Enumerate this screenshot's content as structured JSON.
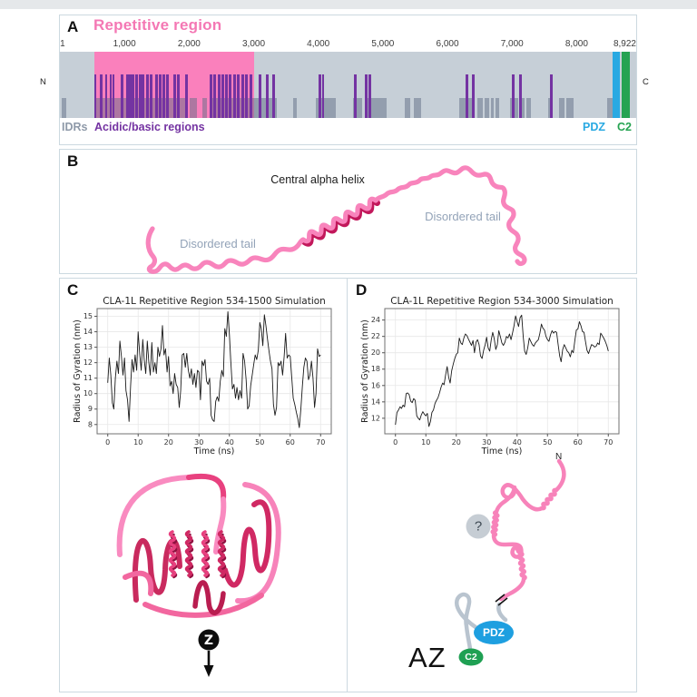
{
  "page": {
    "top_band_color": "#E5E8EA"
  },
  "figure": {
    "panel_a": {
      "label": "A",
      "title": "Repetitive region",
      "n_terminus": "N",
      "c_terminus": "C",
      "sequence_length": 8922,
      "axis_ticks": [
        {
          "pos": 1,
          "label": "1"
        },
        {
          "pos": 1000,
          "label": "1,000"
        },
        {
          "pos": 2000,
          "label": "2,000"
        },
        {
          "pos": 3000,
          "label": "3,000"
        },
        {
          "pos": 4000,
          "label": "4,000"
        },
        {
          "pos": 5000,
          "label": "5,000"
        },
        {
          "pos": 6000,
          "label": "6,000"
        },
        {
          "pos": 7000,
          "label": "7,000"
        },
        {
          "pos": 8000,
          "label": "8,000"
        },
        {
          "pos": 8922,
          "label": "8,922"
        }
      ],
      "repetitive_region": {
        "start": 534,
        "end": 3000
      },
      "acidic_basic_positions": [
        547,
        645,
        716,
        786,
        828,
        968,
        1052,
        1094,
        1136,
        1192,
        1249,
        1291,
        1361,
        1417,
        1501,
        1557,
        1613,
        1669,
        1782,
        1838,
        1964,
        2343,
        2399,
        2469,
        2525,
        2581,
        2637,
        2707,
        2764,
        2834,
        2890,
        2960,
        3100,
        3213,
        3312,
        4025,
        4075,
        4573,
        4745,
        4800,
        6300,
        6400,
        7015,
        7130,
        7605
      ],
      "idr_segments": [
        [
          30,
          95
        ],
        [
          547,
          1950
        ],
        [
          2006,
          2118
        ],
        [
          2203,
          2273
        ],
        [
          2343,
          3353
        ],
        [
          3606,
          3662
        ],
        [
          3956,
          4265
        ],
        [
          4545,
          4685
        ],
        [
          4756,
          5065
        ],
        [
          5345,
          5429
        ],
        [
          5486,
          5598
        ],
        [
          6186,
          6411
        ],
        [
          6467,
          6551
        ],
        [
          6579,
          6649
        ],
        [
          6677,
          6719
        ],
        [
          6747,
          6803
        ],
        [
          6971,
          7098
        ],
        [
          7126,
          7196
        ],
        [
          7224,
          7294
        ],
        [
          7560,
          7632
        ],
        [
          7730,
          7814
        ],
        [
          7842,
          7954
        ],
        [
          8474,
          8558
        ]
      ],
      "pdz_domain": {
        "start": 8560,
        "end": 8670
      },
      "c2_domain": {
        "start": 8700,
        "end": 8830
      },
      "legend": {
        "idrs": "IDRs",
        "acidic": "Acidic/basic regions",
        "pdz": "PDZ",
        "c2": "C2"
      },
      "colors": {
        "bar_bg": "#C6CFD7",
        "repetitive": "#FA80BC",
        "title_color": "#F478B4",
        "acidic": "#7433A2",
        "idr": "#5F6E85",
        "idr_label": "#8E99A8",
        "pdz": "#29A9E2",
        "c2": "#26A352"
      }
    },
    "panel_b": {
      "label": "B",
      "central_helix_label": "Central alpha helix",
      "disordered_tail_left": "Disordered tail",
      "disordered_tail_right": "Disordered tail",
      "colors": {
        "chain": "#F884BC",
        "helix_dark": "#C2185B",
        "tail_label": "#93A3B8"
      }
    },
    "panel_c": {
      "label": "C",
      "z_axis_label": "Z",
      "structure_palette": [
        "#F98BC0",
        "#F783BA",
        "#F2679F",
        "#E8417F",
        "#D02963",
        "#C92A5E",
        "#B91D50",
        "#8F1140"
      ]
    },
    "panel_d": {
      "label": "D",
      "n_label": "N",
      "question_mark": "?",
      "pdz_label": "PDZ",
      "c2_label": "C2",
      "az_label": "AZ",
      "colors": {
        "chain_pink": "#F783BA",
        "chain_gray": "#B9C4CF",
        "pdz_fill": "#1E9FE0",
        "c2_fill": "#1FA053",
        "question_fill": "#C6CDD4"
      }
    }
  },
  "chart_data": [
    {
      "type": "line",
      "title": "CLA-1L Repetitive Region 534-1500 Simulation",
      "xlabel": "Time (ns)",
      "ylabel": "Radius of Gyration (nm)",
      "x_ticks": [
        0,
        10,
        20,
        30,
        40,
        50,
        60,
        70
      ],
      "y_ticks": [
        8,
        9,
        10,
        11,
        12,
        13,
        14,
        15
      ],
      "xlim": [
        -3.5,
        73.5
      ],
      "ylim": [
        7.4,
        15.5
      ],
      "grid": true,
      "legend_position": "none",
      "x_start": 0,
      "x_step": 0.5,
      "y": [
        10.7,
        12.3,
        11.2,
        9.4,
        9.0,
        11.0,
        12.1,
        11.3,
        13.4,
        12.4,
        11.2,
        12.3,
        10.2,
        9.6,
        8.2,
        10.5,
        12.2,
        11.4,
        12.5,
        11.5,
        14.0,
        12.6,
        11.5,
        13.5,
        12.2,
        11.3,
        13.4,
        12.0,
        11.2,
        13.3,
        11.4,
        12.0,
        11.3,
        13.0,
        12.4,
        12.9,
        14.4,
        12.5,
        12.9,
        11.4,
        12.4,
        10.5,
        10.8,
        10.0,
        11.3,
        10.6,
        10.4,
        9.1,
        10.2,
        12.5,
        12.6,
        11.7,
        12.6,
        11.5,
        11.0,
        11.6,
        10.6,
        11.3,
        10.4,
        11.5,
        11.4,
        9.6,
        12.1,
        11.8,
        12.2,
        10.8,
        10.6,
        11.0,
        8.6,
        8.3,
        8.2,
        9.5,
        9.8,
        9.5,
        10.8,
        11.5,
        11.1,
        14.2,
        13.7,
        15.3,
        13.8,
        12.0,
        10.3,
        10.6,
        9.7,
        10.4,
        9.6,
        10.2,
        9.7,
        12.6,
        12.1,
        10.9,
        9.0,
        9.2,
        10.5,
        11.2,
        11.9,
        12.5,
        12.2,
        12.8,
        14.6,
        14.2,
        13.1,
        15.1,
        14.4,
        13.6,
        12.8,
        12.1,
        11.6,
        9.3,
        8.6,
        9.1,
        12.0,
        11.8,
        12.1,
        11.2,
        12.4,
        13.9,
        12.3,
        12.5,
        12.4,
        11.1,
        9.7,
        9.3,
        8.8,
        8.4,
        7.8,
        9.0,
        10.5,
        11.7,
        12.3,
        12.1,
        10.9,
        11.2,
        12.1,
        11.0,
        9.1,
        10.0,
        12.9,
        12.4,
        12.5
      ]
    },
    {
      "type": "line",
      "title": "CLA-1L Repetitive Region 534-3000 Simulation",
      "xlabel": "Time (ns)",
      "ylabel": "Radius of Gyration (nm)",
      "x_ticks": [
        0,
        10,
        20,
        30,
        40,
        50,
        60,
        70
      ],
      "y_ticks": [
        12,
        14,
        16,
        18,
        20,
        22,
        24
      ],
      "xlim": [
        -3.5,
        73.5
      ],
      "ylim": [
        10.1,
        25.4
      ],
      "grid": true,
      "legend_position": "none",
      "x_start": 0,
      "x_step": 0.5,
      "y": [
        11.2,
        12.7,
        13.0,
        13.4,
        13.2,
        13.6,
        13.4,
        15.0,
        15.1,
        14.9,
        14.1,
        13.9,
        14.4,
        14.2,
        12.3,
        12.0,
        11.8,
        12.4,
        12.8,
        12.5,
        12.3,
        12.6,
        11.0,
        11.6,
        12.7,
        13.0,
        13.8,
        14.2,
        14.5,
        15.1,
        15.8,
        16.3,
        16.1,
        17.3,
        18.3,
        17.0,
        16.3,
        17.8,
        18.6,
        19.3,
        19.8,
        20.0,
        21.8,
        21.2,
        21.0,
        21.8,
        22.3,
        22.1,
        21.7,
        21.3,
        20.9,
        21.5,
        20.0,
        21.3,
        21.6,
        21.0,
        19.6,
        19.3,
        20.3,
        21.0,
        21.9,
        20.6,
        20.2,
        21.6,
        22.5,
        21.7,
        20.4,
        21.0,
        22.7,
        22.0,
        21.2,
        20.9,
        21.3,
        22.0,
        21.8,
        22.3,
        21.6,
        22.4,
        23.3,
        24.5,
        23.8,
        23.2,
        24.3,
        24.6,
        22.0,
        20.2,
        19.8,
        20.6,
        21.8,
        21.4,
        21.0,
        20.8,
        21.2,
        21.4,
        21.6,
        22.4,
        23.5,
        23.0,
        22.8,
        22.0,
        21.6,
        21.4,
        22.2,
        22.7,
        22.4,
        22.6,
        22.5,
        21.0,
        19.6,
        18.9,
        20.4,
        21.0,
        20.6,
        20.2,
        20.0,
        19.5,
        20.3,
        20.0,
        21.5,
        22.8,
        22.9,
        23.8,
        23.3,
        22.6,
        22.5,
        21.4,
        20.3,
        19.9,
        20.5,
        21.0,
        20.9,
        20.7,
        20.8,
        21.2,
        21.0,
        22.4,
        22.1,
        21.8,
        21.4,
        20.9,
        20.2
      ]
    }
  ]
}
